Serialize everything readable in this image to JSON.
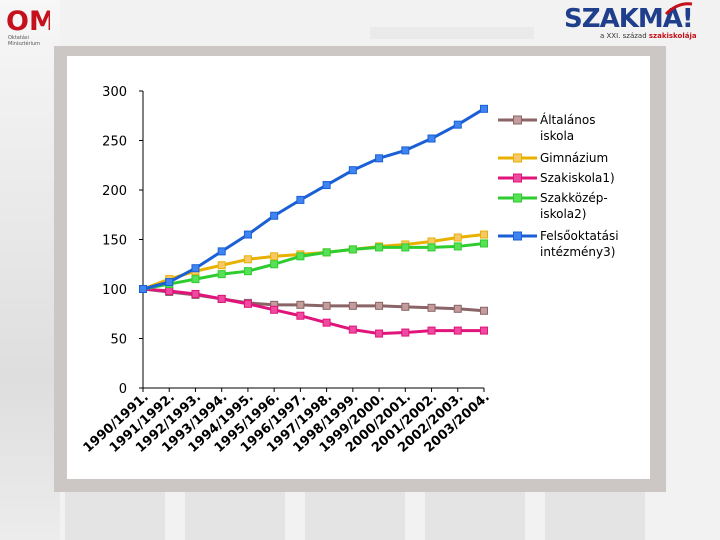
{
  "header": {
    "left_logo": {
      "mark": "OM",
      "line1": "Oktatási",
      "line2": "Minisztérium",
      "brand_color": "#c4111b"
    },
    "right_logo": {
      "wordmark": "SZAKMA!",
      "tagline_prefix": "a XXI. század",
      "tagline_accent": "szakiskolája",
      "wordmark_color": "#1f3e8c",
      "accent_color": "#c4111b"
    }
  },
  "chart_data": {
    "type": "line",
    "title": "",
    "xlabel": "",
    "ylabel": "",
    "ylim": [
      0,
      300
    ],
    "yticks": [
      0,
      50,
      100,
      150,
      200,
      250,
      300
    ],
    "grid": false,
    "legend_position": "right",
    "categories": [
      "1990/1991.",
      "1991/1992.",
      "1992/1993.",
      "1993/1994.",
      "1994/1995.",
      "1995/1996.",
      "1996/1997.",
      "1997/1998.",
      "1998/1999.",
      "1999/2000.",
      "2000/2001.",
      "2001/2002.",
      "2002/2003.",
      "2003/2004."
    ],
    "series": [
      {
        "name": "Általános iskola",
        "legend_lines": [
          "Általános",
          "iskola"
        ],
        "color": "#8a6466",
        "fill": "#c39c9c",
        "values": [
          100,
          97,
          94,
          90,
          86,
          84,
          84,
          83,
          83,
          83,
          82,
          81,
          80,
          78
        ]
      },
      {
        "name": "Gimnázium",
        "legend_lines": [
          "Gimnázium"
        ],
        "color": "#e8b100",
        "fill": "#f6c86a",
        "values": [
          100,
          110,
          118,
          124,
          130,
          133,
          135,
          137,
          140,
          143,
          145,
          148,
          152,
          155
        ]
      },
      {
        "name": "Szakiskola1)",
        "legend_lines": [
          "Szakiskola1)"
        ],
        "color": "#e0147a",
        "fill": "#ee4aa0",
        "values": [
          100,
          98,
          95,
          90,
          85,
          79,
          73,
          66,
          59,
          55,
          56,
          58,
          58,
          58
        ]
      },
      {
        "name": "Szakközép-iskola2)",
        "legend_lines": [
          "Szakközép-",
          "iskola2)"
        ],
        "color": "#2ecc2e",
        "fill": "#58e058",
        "values": [
          100,
          105,
          110,
          115,
          118,
          125,
          133,
          137,
          140,
          142,
          142,
          142,
          143,
          146
        ]
      },
      {
        "name": "Felsőoktatási intézmény3)",
        "legend_lines": [
          "Felsőoktatási",
          "intézmény3)"
        ],
        "color": "#1a5fd6",
        "fill": "#3f84f0",
        "values": [
          100,
          107,
          121,
          138,
          155,
          174,
          190,
          205,
          220,
          232,
          240,
          252,
          266,
          282
        ]
      }
    ]
  }
}
